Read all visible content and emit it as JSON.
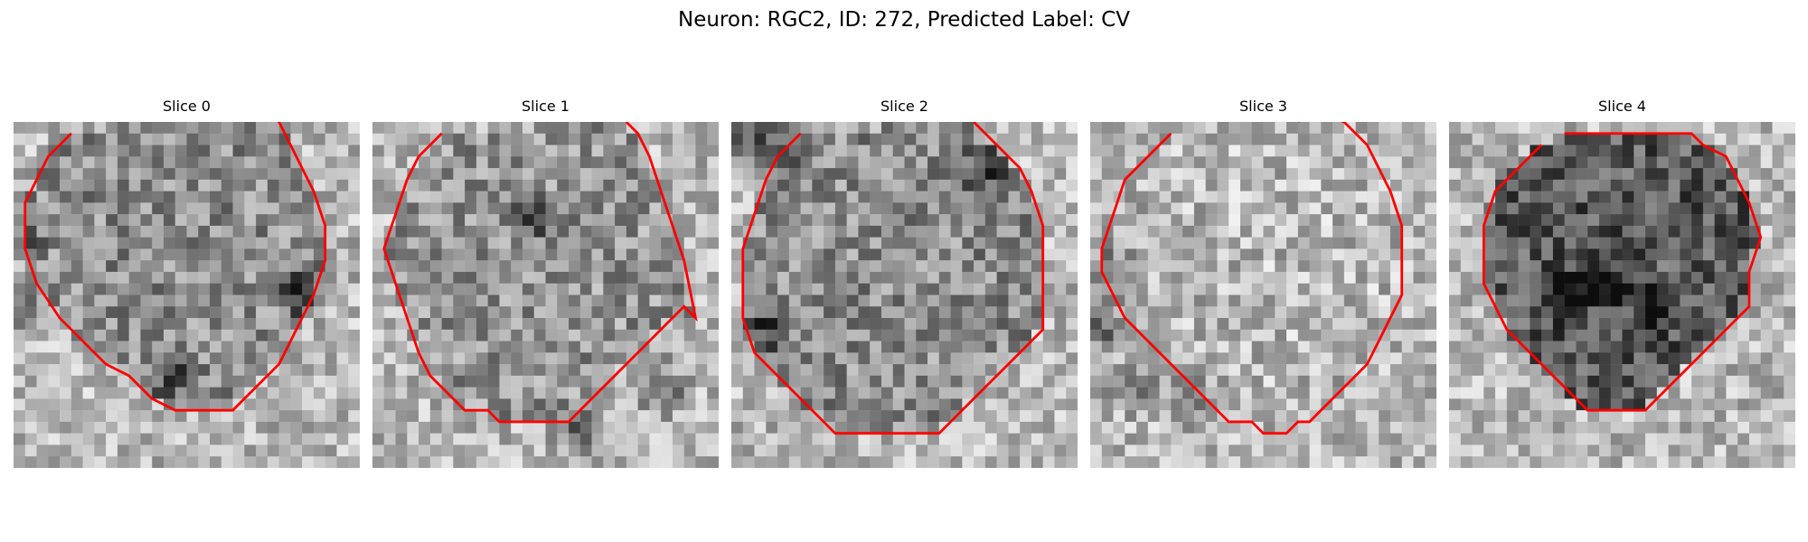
{
  "figure": {
    "title": "Neuron: RGC2, ID: 272, Predicted Label: CV"
  },
  "panels": [
    {
      "title": "Slice 0",
      "seed": 11,
      "contour": [
        [
          5,
          1
        ],
        [
          3,
          3
        ],
        [
          2,
          5
        ],
        [
          1,
          7
        ],
        [
          1,
          11
        ],
        [
          2,
          14
        ],
        [
          4,
          17
        ],
        [
          6,
          19
        ],
        [
          8,
          21
        ],
        [
          10,
          22
        ],
        [
          11,
          23
        ],
        [
          12,
          24
        ],
        [
          13,
          24.5
        ],
        [
          14,
          25
        ],
        [
          15,
          25
        ],
        [
          16,
          25
        ],
        [
          17,
          25
        ],
        [
          18,
          25
        ],
        [
          19,
          25
        ],
        [
          20,
          24
        ],
        [
          21,
          23
        ],
        [
          22,
          22
        ],
        [
          23,
          21
        ],
        [
          24,
          19
        ],
        [
          25,
          17
        ],
        [
          26,
          15
        ],
        [
          27,
          12
        ],
        [
          27,
          9
        ],
        [
          26,
          6
        ],
        [
          25,
          4
        ],
        [
          24,
          2
        ],
        [
          23,
          0
        ],
        [
          22,
          -1
        ]
      ],
      "texture": {
        "interior": 0.55,
        "dark_patches": [
          [
            1,
            16
          ],
          [
            0,
            10
          ],
          [
            25,
            15
          ],
          [
            14,
            22
          ],
          [
            5,
            -2
          ]
        ]
      }
    },
    {
      "title": "Slice 1",
      "seed": 23,
      "contour": [
        [
          6,
          1
        ],
        [
          4,
          3
        ],
        [
          3,
          5
        ],
        [
          2,
          8
        ],
        [
          1,
          11
        ],
        [
          2,
          14
        ],
        [
          3,
          17
        ],
        [
          4,
          20
        ],
        [
          5,
          22
        ],
        [
          6,
          23
        ],
        [
          7,
          24
        ],
        [
          8,
          25
        ],
        [
          9,
          25
        ],
        [
          10,
          25
        ],
        [
          11,
          26
        ],
        [
          12,
          26
        ],
        [
          13,
          26
        ],
        [
          14,
          26
        ],
        [
          15,
          26
        ],
        [
          16,
          26
        ],
        [
          17,
          26
        ],
        [
          18,
          25
        ],
        [
          19,
          24
        ],
        [
          20,
          23
        ],
        [
          21,
          22
        ],
        [
          22,
          21
        ],
        [
          23,
          20
        ],
        [
          24,
          19
        ],
        [
          25,
          18
        ],
        [
          26,
          17
        ],
        [
          27,
          16
        ],
        [
          28,
          17
        ],
        [
          27,
          12
        ],
        [
          26,
          9
        ],
        [
          25,
          6
        ],
        [
          24,
          3
        ],
        [
          23,
          1
        ],
        [
          22,
          0
        ]
      ],
      "texture": {
        "interior": 0.58,
        "dark_patches": [
          [
            25,
            23
          ],
          [
            18,
            27
          ],
          [
            14,
            8
          ]
        ]
      }
    },
    {
      "title": "Slice 2",
      "seed": 37,
      "contour": [
        [
          6,
          1
        ],
        [
          4,
          3
        ],
        [
          3,
          5
        ],
        [
          2,
          8
        ],
        [
          1,
          11
        ],
        [
          1,
          14
        ],
        [
          1,
          17
        ],
        [
          2,
          20
        ],
        [
          3,
          21
        ],
        [
          4,
          22
        ],
        [
          5,
          23
        ],
        [
          6,
          24
        ],
        [
          7,
          25
        ],
        [
          8,
          26
        ],
        [
          9,
          27
        ],
        [
          10,
          27
        ],
        [
          11,
          27
        ],
        [
          12,
          27
        ],
        [
          13,
          27
        ],
        [
          14,
          27
        ],
        [
          15,
          27
        ],
        [
          16,
          27
        ],
        [
          17,
          27
        ],
        [
          18,
          27
        ],
        [
          19,
          26
        ],
        [
          20,
          25
        ],
        [
          21,
          24
        ],
        [
          22,
          23
        ],
        [
          23,
          22
        ],
        [
          24,
          21
        ],
        [
          25,
          20
        ],
        [
          26,
          19
        ],
        [
          27,
          18
        ],
        [
          27,
          15
        ],
        [
          27,
          12
        ],
        [
          27,
          9
        ],
        [
          26,
          6
        ],
        [
          25,
          4
        ],
        [
          23,
          2
        ],
        [
          22,
          1
        ],
        [
          21,
          0
        ]
      ],
      "texture": {
        "interior": 0.55,
        "dark_patches": [
          [
            1,
            1
          ],
          [
            4,
            2
          ],
          [
            22,
            4
          ],
          [
            3,
            18
          ]
        ]
      }
    },
    {
      "title": "Slice 3",
      "seed": 53,
      "contour": [
        [
          7,
          1
        ],
        [
          5,
          3
        ],
        [
          3,
          5
        ],
        [
          2,
          8
        ],
        [
          1,
          11
        ],
        [
          1,
          13
        ],
        [
          2,
          15
        ],
        [
          3,
          17
        ],
        [
          4,
          18
        ],
        [
          5,
          19
        ],
        [
          6,
          20
        ],
        [
          7,
          21
        ],
        [
          8,
          22
        ],
        [
          9,
          23
        ],
        [
          10,
          24
        ],
        [
          11,
          25
        ],
        [
          12,
          26
        ],
        [
          13,
          26
        ],
        [
          14,
          26
        ],
        [
          15,
          27
        ],
        [
          16,
          27
        ],
        [
          17,
          27
        ],
        [
          18,
          26
        ],
        [
          19,
          26
        ],
        [
          20,
          25
        ],
        [
          21,
          24
        ],
        [
          22,
          23
        ],
        [
          23,
          22
        ],
        [
          24,
          21
        ],
        [
          25,
          19
        ],
        [
          26,
          17
        ],
        [
          27,
          15
        ],
        [
          27,
          12
        ],
        [
          27,
          9
        ],
        [
          26,
          6
        ],
        [
          25,
          4
        ],
        [
          24,
          2
        ],
        [
          23,
          1
        ],
        [
          22,
          0
        ],
        [
          19,
          -1
        ],
        [
          18,
          0
        ]
      ],
      "texture": {
        "interior": 0.72,
        "dark_patches": [
          [
            1,
            18
          ],
          [
            4,
            23
          ],
          [
            9,
            24
          ],
          [
            2,
            13
          ]
        ]
      }
    },
    {
      "title": "Slice 4",
      "seed": 71,
      "contour": [
        [
          8,
          2
        ],
        [
          6,
          4
        ],
        [
          4,
          6
        ],
        [
          3,
          9
        ],
        [
          3,
          12
        ],
        [
          3,
          14
        ],
        [
          4,
          16
        ],
        [
          5,
          18
        ],
        [
          6,
          19
        ],
        [
          7,
          20
        ],
        [
          8,
          21
        ],
        [
          9,
          22
        ],
        [
          10,
          23
        ],
        [
          11,
          24
        ],
        [
          12,
          25
        ],
        [
          13,
          25
        ],
        [
          14,
          25
        ],
        [
          15,
          25
        ],
        [
          16,
          25
        ],
        [
          17,
          25
        ],
        [
          18,
          24
        ],
        [
          19,
          23
        ],
        [
          20,
          22
        ],
        [
          21,
          21
        ],
        [
          22,
          20
        ],
        [
          23,
          19
        ],
        [
          24,
          18
        ],
        [
          25,
          17
        ],
        [
          26,
          16
        ],
        [
          26,
          13
        ],
        [
          27,
          10
        ],
        [
          26,
          7
        ],
        [
          25,
          5
        ],
        [
          24,
          3
        ],
        [
          22,
          2
        ],
        [
          21,
          1
        ],
        [
          20,
          1
        ],
        [
          12,
          1
        ],
        [
          10,
          1
        ]
      ],
      "texture": {
        "interior": 0.35,
        "dark_patches": [
          [
            14,
            14
          ],
          [
            10,
            15
          ],
          [
            18,
            16
          ]
        ]
      }
    }
  ],
  "colors": {
    "contour": "#ff0000",
    "background": "#ffffff"
  }
}
